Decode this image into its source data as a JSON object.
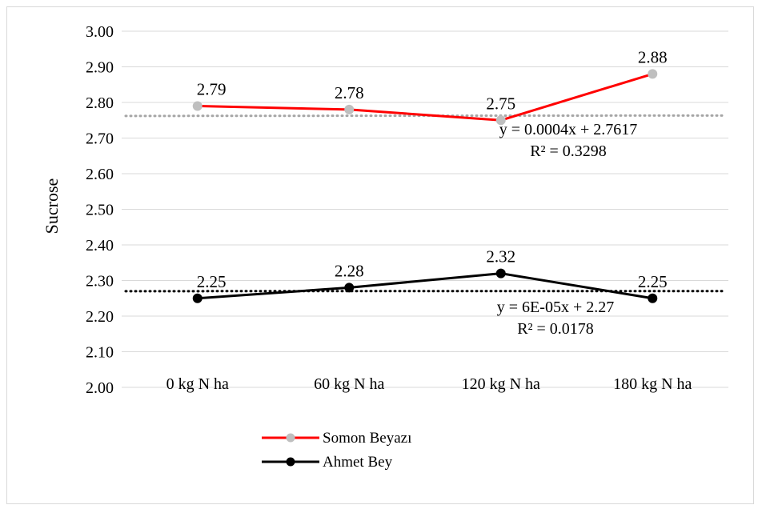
{
  "chart_data": {
    "type": "line",
    "title": "",
    "xlabel": "",
    "ylabel": "Sucrose",
    "ylim": [
      2.0,
      3.0
    ],
    "ytick_step": 0.1,
    "categories": [
      "0 kg N ha",
      "60 kg N ha",
      "120 kg N ha",
      "180 kg N ha"
    ],
    "grid": true,
    "legend_position": "bottom",
    "series": [
      {
        "name": "Somon Beyazı",
        "values": [
          2.79,
          2.78,
          2.75,
          2.88
        ],
        "labels": [
          "2.79",
          "2.78",
          "2.75",
          "2.88"
        ],
        "line_color": "#ff0000",
        "marker_color": "#bfbfbf",
        "trendline": {
          "equation": "y = 0.0004x + 2.7617",
          "r2": "R² = 0.3298",
          "slope": 0.0004,
          "intercept": 2.7617,
          "color": "#a6a6a6"
        }
      },
      {
        "name": "Ahmet Bey",
        "values": [
          2.25,
          2.28,
          2.32,
          2.25
        ],
        "labels": [
          "2.25",
          "2.28",
          "2.32",
          "2.25"
        ],
        "line_color": "#000000",
        "marker_color": "#000000",
        "trendline": {
          "equation": "y = 6E-05x + 2.27",
          "r2": "R² = 0.0178",
          "slope": 6e-05,
          "intercept": 2.27,
          "color": "#000000"
        }
      }
    ]
  }
}
